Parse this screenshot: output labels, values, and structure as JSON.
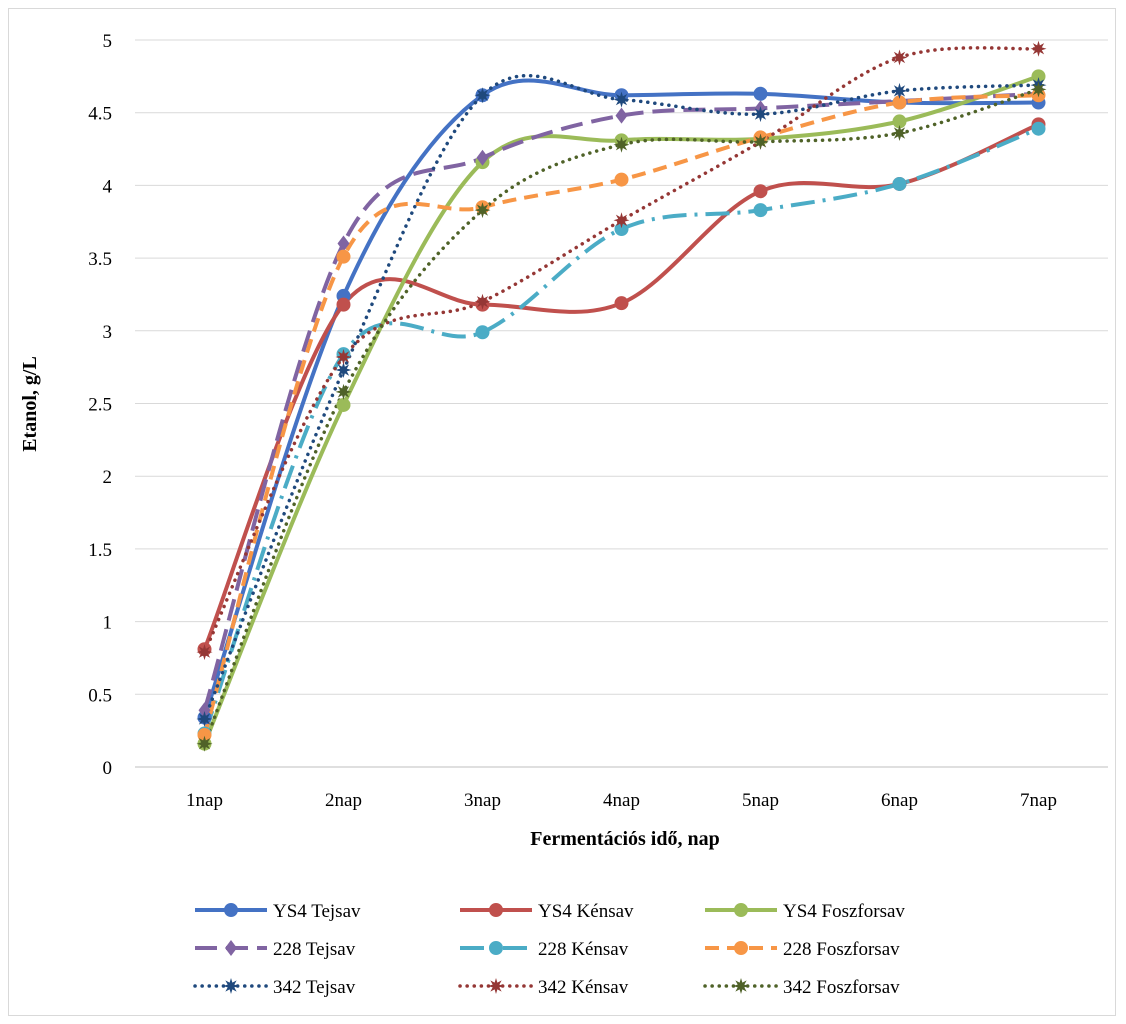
{
  "chart_data": {
    "type": "line",
    "xlabel": "Fermentációs idő, nap",
    "ylabel": "Etanol, g/L",
    "categories": [
      "1nap",
      "2nap",
      "3nap",
      "4nap",
      "5nap",
      "6nap",
      "7nap"
    ],
    "ylim": [
      0,
      5
    ],
    "yticks": [
      "0",
      "0.5",
      "1",
      "1.5",
      "2",
      "2.5",
      "3",
      "3.5",
      "4",
      "4.5",
      "5"
    ],
    "grid": "horizontal",
    "legend_position": "bottom",
    "series": [
      {
        "name": "YS4 Tejsav",
        "values": [
          0.34,
          3.24,
          4.62,
          4.62,
          4.63,
          4.57,
          4.57
        ],
        "color": "#4472C4",
        "dash": "solid",
        "marker": "circle"
      },
      {
        "name": "YS4 Kénsav",
        "values": [
          0.81,
          3.18,
          3.18,
          3.19,
          3.96,
          4.01,
          4.42
        ],
        "color": "#C0504D",
        "dash": "solid",
        "marker": "circle"
      },
      {
        "name": "YS4 Foszforsav",
        "values": [
          0.16,
          2.49,
          4.16,
          4.31,
          4.32,
          4.44,
          4.75
        ],
        "color": "#9BBB59",
        "dash": "solid",
        "marker": "circle"
      },
      {
        "name": "228 Tejsav",
        "values": [
          0.39,
          3.6,
          4.19,
          4.48,
          4.53,
          4.58,
          4.63
        ],
        "color": "#8064A2",
        "dash": "longdash",
        "marker": "diamond"
      },
      {
        "name": "228 Kénsav",
        "values": [
          0.23,
          2.84,
          2.99,
          3.7,
          3.83,
          4.01,
          4.39
        ],
        "color": "#4BACC6",
        "dash": "longdashdot",
        "marker": "circle"
      },
      {
        "name": "228 Foszforsav",
        "values": [
          0.22,
          3.51,
          3.85,
          4.04,
          4.33,
          4.57,
          4.62
        ],
        "color": "#F79646",
        "dash": "dash",
        "marker": "circle"
      },
      {
        "name": "342 Tejsav",
        "values": [
          0.33,
          2.73,
          4.62,
          4.59,
          4.49,
          4.65,
          4.69
        ],
        "color": "#1F497D",
        "dash": "dot",
        "marker": "star"
      },
      {
        "name": "342 Kénsav",
        "values": [
          0.79,
          2.82,
          3.2,
          3.76,
          4.3,
          4.88,
          4.94
        ],
        "color": "#953735",
        "dash": "dot",
        "marker": "star"
      },
      {
        "name": "342 Foszforsav",
        "values": [
          0.16,
          2.58,
          3.83,
          4.28,
          4.3,
          4.36,
          4.66
        ],
        "color": "#4F6228",
        "dash": "dot",
        "marker": "star"
      }
    ]
  }
}
